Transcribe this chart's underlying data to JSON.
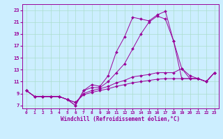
{
  "xlabel": "Windchill (Refroidissement éolien,°C)",
  "background_color": "#cceeff",
  "grid_color": "#aaddcc",
  "line_color": "#990099",
  "xlim": [
    -0.5,
    23.5
  ],
  "ylim": [
    6.5,
    24.0
  ],
  "xticks": [
    0,
    1,
    2,
    3,
    4,
    5,
    6,
    7,
    8,
    9,
    10,
    11,
    12,
    13,
    14,
    15,
    16,
    17,
    18,
    19,
    20,
    21,
    22,
    23
  ],
  "yticks": [
    7,
    9,
    11,
    13,
    15,
    17,
    19,
    21,
    23
  ],
  "series": [
    {
      "x": [
        0,
        1,
        2,
        3,
        4,
        5,
        6,
        7,
        8,
        9,
        10,
        11,
        12,
        13,
        14,
        15,
        16,
        17,
        18,
        19,
        20,
        21,
        22,
        23
      ],
      "y": [
        9.5,
        8.5,
        8.5,
        8.5,
        8.5,
        8.0,
        7.0,
        9.5,
        10.5,
        10.2,
        12.0,
        16.0,
        18.5,
        21.8,
        21.5,
        21.2,
        22.2,
        22.8,
        17.8,
        13.2,
        11.5,
        11.5,
        11.0,
        12.5
      ]
    },
    {
      "x": [
        0,
        1,
        2,
        3,
        4,
        5,
        6,
        7,
        8,
        9,
        10,
        11,
        12,
        13,
        14,
        15,
        16,
        17,
        18,
        19,
        20,
        21,
        22,
        23
      ],
      "y": [
        9.5,
        8.5,
        8.5,
        8.5,
        8.5,
        8.0,
        7.0,
        9.5,
        10.0,
        10.0,
        11.0,
        12.5,
        14.0,
        16.5,
        19.0,
        21.0,
        22.0,
        21.5,
        17.8,
        11.5,
        11.5,
        11.5,
        11.0,
        12.5
      ]
    },
    {
      "x": [
        0,
        1,
        2,
        3,
        4,
        5,
        6,
        7,
        8,
        9,
        10,
        11,
        12,
        13,
        14,
        15,
        16,
        17,
        18,
        19,
        20,
        21,
        22,
        23
      ],
      "y": [
        9.5,
        8.5,
        8.5,
        8.5,
        8.5,
        8.0,
        7.5,
        8.8,
        9.2,
        9.5,
        9.8,
        10.2,
        10.5,
        10.8,
        11.0,
        11.2,
        11.4,
        11.5,
        11.5,
        11.5,
        11.5,
        11.5,
        11.0,
        12.5
      ]
    },
    {
      "x": [
        0,
        1,
        2,
        3,
        4,
        5,
        6,
        7,
        8,
        9,
        10,
        11,
        12,
        13,
        14,
        15,
        16,
        17,
        18,
        19,
        20,
        21,
        22,
        23
      ],
      "y": [
        9.5,
        8.5,
        8.5,
        8.5,
        8.5,
        8.0,
        7.5,
        9.0,
        9.5,
        9.8,
        10.2,
        10.8,
        11.2,
        11.8,
        12.0,
        12.2,
        12.5,
        12.5,
        12.5,
        13.2,
        12.0,
        11.5,
        11.0,
        12.5
      ]
    }
  ]
}
